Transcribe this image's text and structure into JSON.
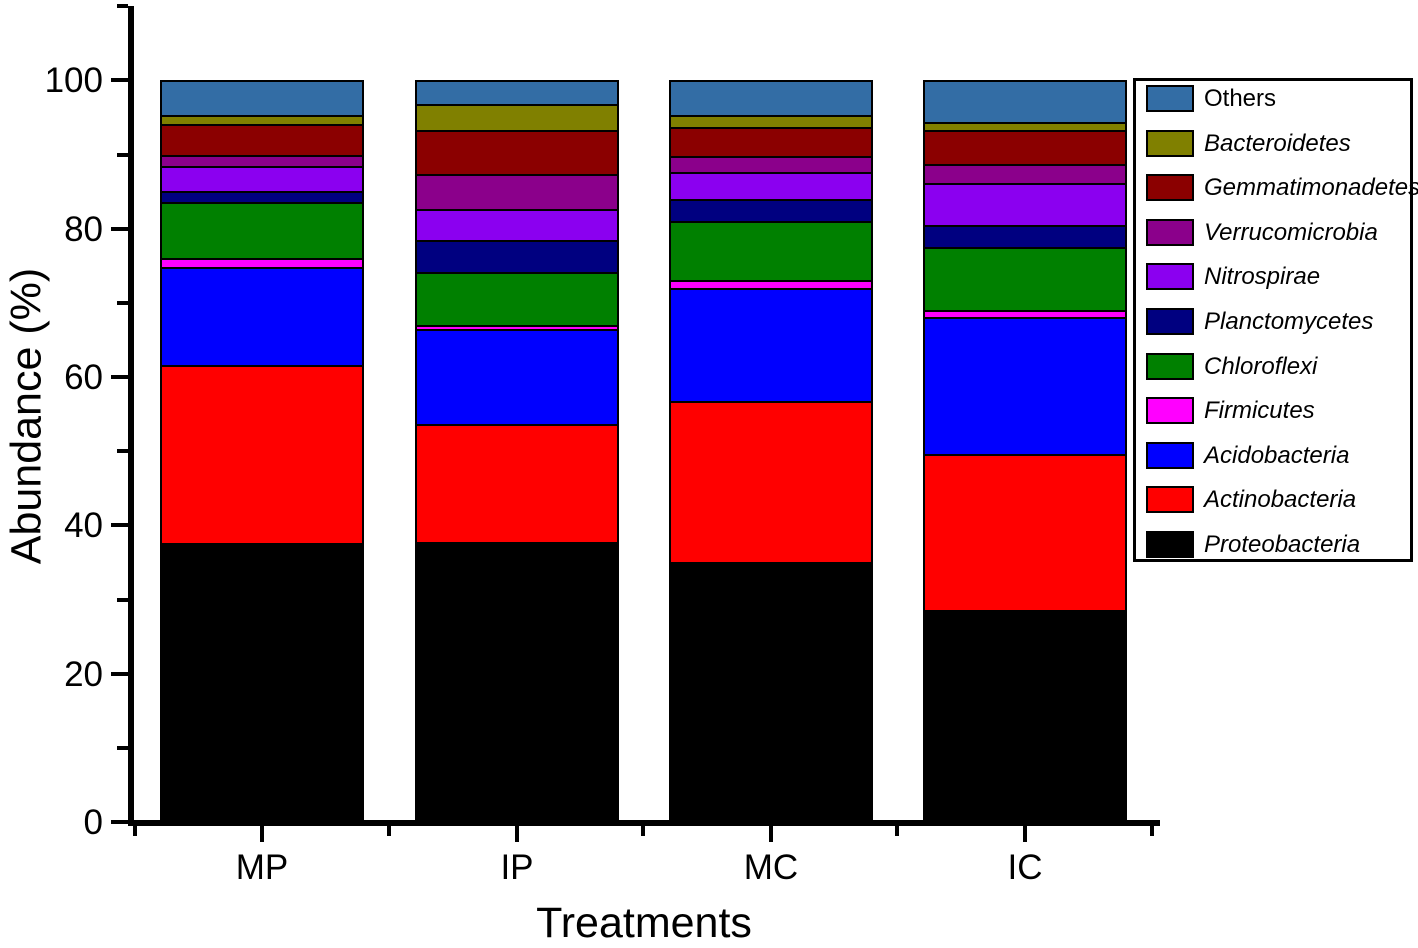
{
  "chart_data": {
    "type": "bar",
    "stacked": true,
    "title": "",
    "xlabel": "Treatments",
    "ylabel": "Abundance (%)",
    "categories": [
      "MP",
      "IP",
      "MC",
      "IC"
    ],
    "ylim": [
      0,
      110
    ],
    "yticks": {
      "major": [
        0,
        20,
        40,
        60,
        80,
        100
      ],
      "minor": [
        10,
        30,
        50,
        70,
        90,
        110
      ]
    },
    "grid": false,
    "legend_position": "upper-right",
    "bar_outline_color": "#000000",
    "series": [
      {
        "name": "Proteobacteria",
        "color": "#000000",
        "italic": true,
        "values": [
          37.3,
          37.5,
          34.8,
          28.3
        ]
      },
      {
        "name": "Actinobacteria",
        "color": "#FF0000",
        "italic": true,
        "values": [
          24.0,
          15.9,
          21.7,
          21.0
        ]
      },
      {
        "name": "Acidobacteria",
        "color": "#0000FF",
        "italic": true,
        "values": [
          13.3,
          12.8,
          15.2,
          18.5
        ]
      },
      {
        "name": "Firmicutes",
        "color": "#FF00FF",
        "italic": true,
        "values": [
          1.2,
          0.6,
          1.1,
          1.0
        ]
      },
      {
        "name": "Chloroflexi",
        "color": "#008000",
        "italic": true,
        "values": [
          7.5,
          7.1,
          8.0,
          8.4
        ]
      },
      {
        "name": "Planctomycetes",
        "color": "#000080",
        "italic": true,
        "values": [
          1.5,
          4.3,
          3.0,
          3.0
        ]
      },
      {
        "name": "Nitrospirae",
        "color": "#8B00F0",
        "italic": true,
        "values": [
          3.4,
          4.2,
          3.6,
          5.7
        ]
      },
      {
        "name": "Verrucomicrobia",
        "color": "#8B008B",
        "italic": true,
        "values": [
          1.5,
          4.7,
          2.1,
          2.5
        ]
      },
      {
        "name": "Gemmatimonadetes",
        "color": "#8B0000",
        "italic": true,
        "values": [
          4.1,
          5.9,
          3.9,
          4.6
        ]
      },
      {
        "name": "Bacteroidetes",
        "color": "#808000",
        "italic": true,
        "values": [
          1.3,
          3.6,
          1.6,
          1.1
        ]
      },
      {
        "name": "Others",
        "color": "#336DA5",
        "italic": false,
        "values": [
          4.9,
          3.4,
          5.0,
          5.9
        ]
      }
    ]
  }
}
